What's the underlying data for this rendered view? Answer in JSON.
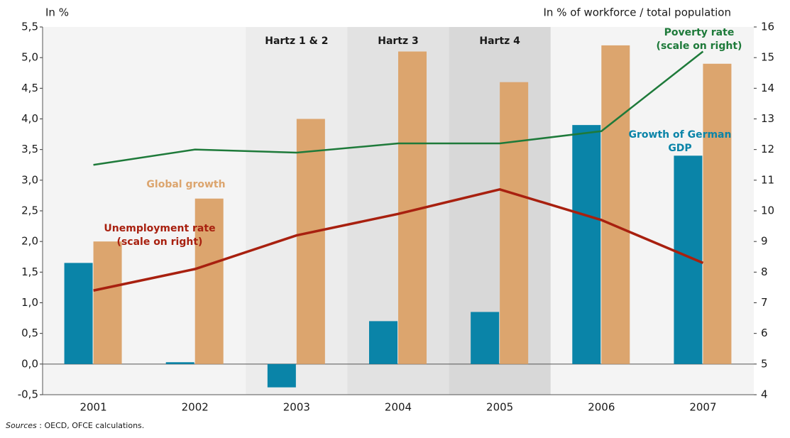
{
  "chart_data": {
    "type": "bar_line",
    "y_label": "In %",
    "y2_label": "In % of workforce / total population",
    "categories": [
      "2001",
      "2002",
      "2003",
      "2004",
      "2005",
      "2006",
      "2007"
    ],
    "series": [
      {
        "label_lines": [
          "Growth of German",
          "GDP"
        ],
        "color": "#0a84a8",
        "kind": "bar",
        "values": [
          1.65,
          0.03,
          -0.38,
          0.7,
          0.85,
          3.9,
          3.4
        ]
      },
      {
        "label_lines": [
          "Global growth"
        ],
        "color": "#dca56e",
        "kind": "bar",
        "values": [
          2.0,
          2.7,
          4.0,
          5.1,
          4.6,
          5.2,
          4.9
        ]
      },
      {
        "label_lines": [
          "Unemployment rate",
          "(scale on right)"
        ],
        "color": "#a8200f",
        "kind": "line",
        "axis": "y2",
        "values": [
          7.4,
          8.1,
          9.2,
          9.9,
          10.7,
          9.7,
          8.3
        ]
      },
      {
        "label_lines": [
          "Poverty rate",
          "(scale on right)"
        ],
        "color": "#1e7a3a",
        "kind": "line",
        "axis": "y2",
        "values": [
          11.5,
          12.0,
          11.9,
          12.2,
          12.2,
          12.6,
          15.2
        ]
      }
    ],
    "periods": [
      {
        "label": "Hartz 1 & 2",
        "category": 2,
        "color": "#ececec"
      },
      {
        "label": "Hartz 3",
        "category": 3,
        "color": "#e2e2e2"
      },
      {
        "label": "Hartz 4",
        "category": 4,
        "color": "#d8d8d8"
      }
    ],
    "ylim": [
      -0.5,
      5.5
    ],
    "yticks": [
      {
        "value": -0.5,
        "label": "-0,5"
      },
      {
        "value": 0,
        "label": "0,0"
      },
      {
        "value": 0.5,
        "label": "0,5"
      },
      {
        "value": 1,
        "label": "1,0"
      },
      {
        "value": 1.5,
        "label": "1,5"
      },
      {
        "value": 2,
        "label": "2,0"
      },
      {
        "value": 2.5,
        "label": "2,5"
      },
      {
        "value": 3,
        "label": "3,0"
      },
      {
        "value": 3.5,
        "label": "3,5"
      },
      {
        "value": 4,
        "label": "4,0"
      },
      {
        "value": 4.5,
        "label": "4,5"
      },
      {
        "value": 5,
        "label": "5,0"
      },
      {
        "value": 5.5,
        "label": "5,5"
      }
    ],
    "y2lim": [
      4,
      16
    ],
    "y2ticks": [
      4,
      5,
      6,
      7,
      8,
      9,
      10,
      11,
      12,
      13,
      14,
      15,
      16
    ],
    "source_lead": "Sources",
    "source_rest": " : OECD, OFCE calculations."
  }
}
